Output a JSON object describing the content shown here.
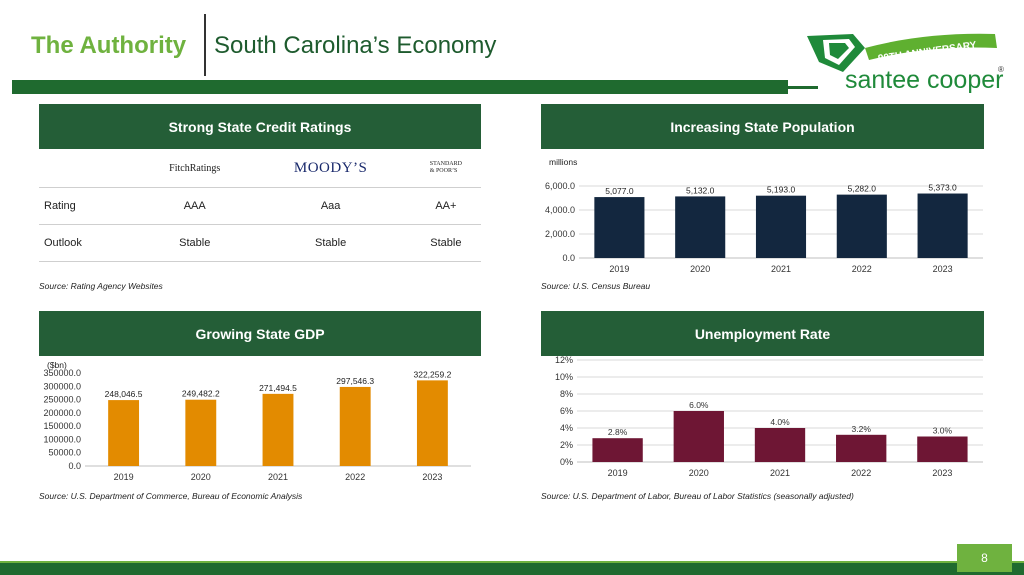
{
  "header": {
    "title_left": "The Authority",
    "title_right": "South Carolina’s Economy"
  },
  "logo": {
    "anniversary": "90TH ANNIVERSARY",
    "brand": "santee cooper",
    "reg": "®"
  },
  "panels": {
    "credit": {
      "title": "Strong State Credit Ratings",
      "agencies": [
        "FitchRatings",
        "MOODY’S",
        "STANDARD",
        "& POOR’S"
      ],
      "rows": [
        {
          "label": "Rating",
          "values": [
            "AAA",
            "Aaa",
            "AA+"
          ]
        },
        {
          "label": "Outlook",
          "values": [
            "Stable",
            "Stable",
            "Stable"
          ]
        }
      ],
      "source": "Source: Rating Agency Websites"
    },
    "population": {
      "title": "Increasing State Population",
      "source": "Source: U.S. Census Bureau"
    },
    "gdp": {
      "title": "Growing State GDP",
      "source": "Source: U.S. Department of Commerce, Bureau of Economic Analysis"
    },
    "unemployment": {
      "title": "Unemployment Rate",
      "source": "Source: U.S. Department of Labor, Bureau of Labor Statistics (seasonally adjusted)"
    }
  },
  "page_number": "8",
  "colors": {
    "brand_green": "#6fb23f",
    "dark_green": "#245e37",
    "population_bar": "#13273f",
    "gdp_bar": "#e38b00",
    "unemployment_bar": "#6e1634"
  },
  "chart_data": [
    {
      "id": "population",
      "type": "bar",
      "categories": [
        "2019",
        "2020",
        "2021",
        "2022",
        "2023"
      ],
      "values": [
        5077.0,
        5132.0,
        5193.0,
        5282.0,
        5373.0
      ],
      "value_labels": [
        "5,077.0",
        "5,132.0",
        "5,193.0",
        "5,282.0",
        "5,373.0"
      ],
      "ylabel": "millions",
      "ylim": [
        0,
        6000
      ],
      "yticks": [
        0,
        2000,
        4000,
        6000
      ],
      "ytick_labels": [
        "0.0",
        "2,000.0",
        "4,000.0",
        "6,000.0"
      ],
      "grid": true
    },
    {
      "id": "gdp",
      "type": "bar",
      "categories": [
        "2019",
        "2020",
        "2021",
        "2022",
        "2023"
      ],
      "values": [
        248046.5,
        249482.2,
        271494.5,
        297546.3,
        322259.2
      ],
      "value_labels": [
        "248,046.5",
        "249,482.2",
        "271,494.5",
        "297,546.3",
        "322,259.2"
      ],
      "ylabel": "($bn)",
      "ylim": [
        0,
        350000
      ],
      "yticks": [
        0,
        50000,
        100000,
        150000,
        200000,
        250000,
        300000,
        350000
      ],
      "ytick_labels": [
        "0.0",
        "50000.0",
        "100000.0",
        "150000.0",
        "200000.0",
        "250000.0",
        "300000.0",
        "350000.0"
      ],
      "grid": false
    },
    {
      "id": "unemployment",
      "type": "bar",
      "categories": [
        "2019",
        "2020",
        "2021",
        "2022",
        "2023"
      ],
      "values": [
        2.8,
        6.0,
        4.0,
        3.2,
        3.0
      ],
      "value_labels": [
        "2.8%",
        "6.0%",
        "4.0%",
        "3.2%",
        "3.0%"
      ],
      "ylim": [
        0,
        12
      ],
      "yticks": [
        0,
        2,
        4,
        6,
        8,
        10,
        12
      ],
      "ytick_labels": [
        "0%",
        "2%",
        "4%",
        "6%",
        "8%",
        "10%",
        "12%"
      ],
      "grid": true
    }
  ]
}
